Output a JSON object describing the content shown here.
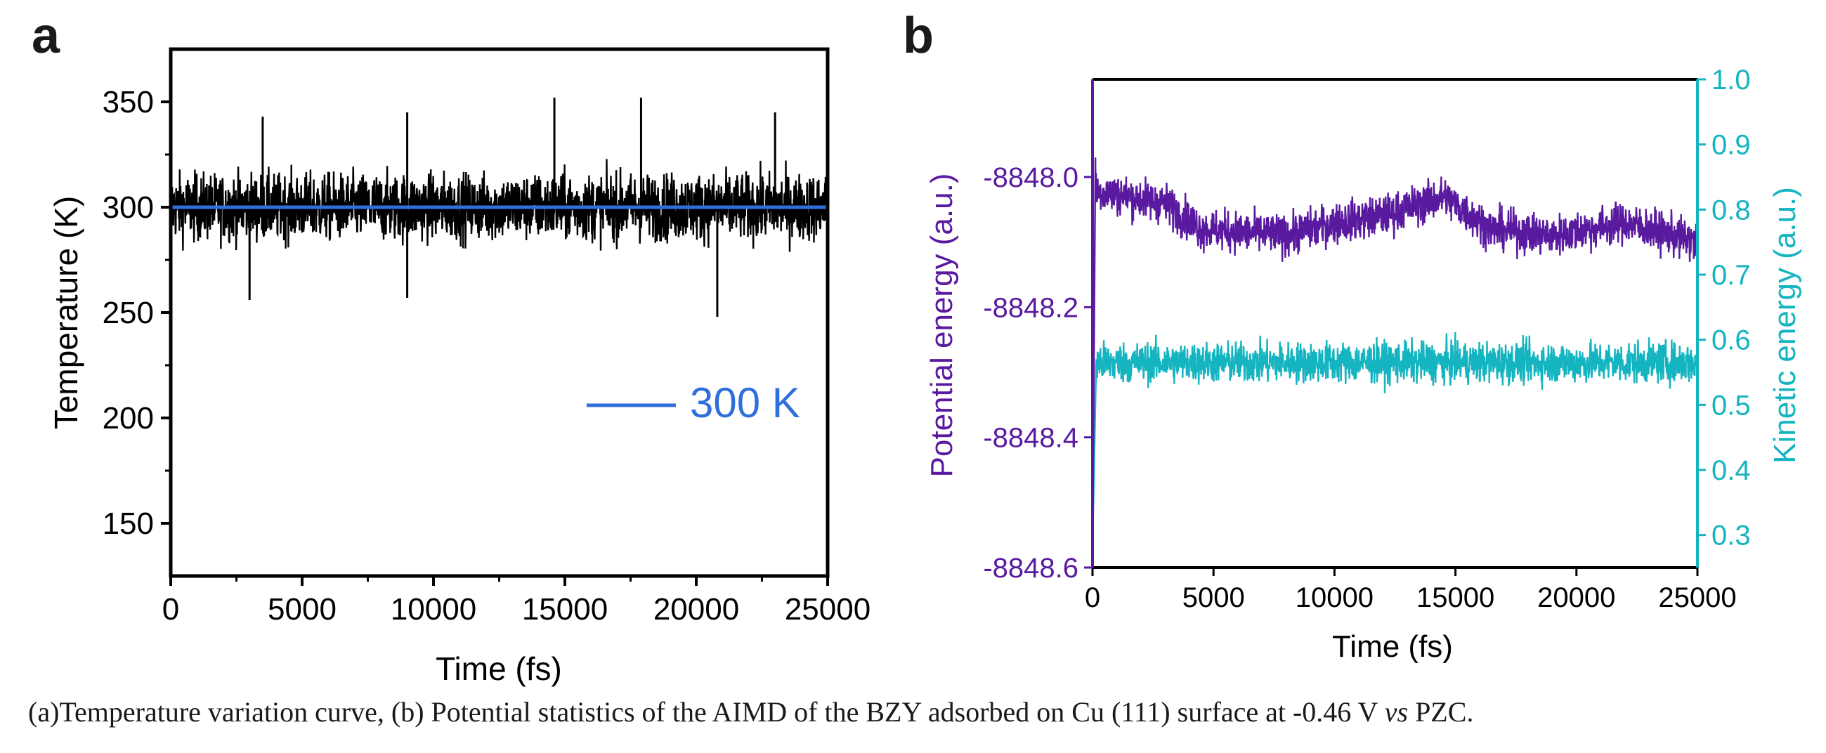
{
  "chart_data": [
    {
      "panel_label": "a",
      "type": "line",
      "xlabel": "Time (fs)",
      "ylabel": "Temperature (K)",
      "xlim": [
        0,
        25000
      ],
      "ylim": [
        125,
        375
      ],
      "xticks": [
        "0",
        "5000",
        "10000",
        "15000",
        "20000",
        "25000"
      ],
      "yticks": [
        "150",
        "200",
        "250",
        "300",
        "350"
      ],
      "grid": false,
      "legend_position": "center-right",
      "series": [
        {
          "color": "#000000",
          "kind": "noisy-trace",
          "center": 300,
          "spread": 15,
          "peaks": [
            [
              3500,
              343
            ],
            [
              9000,
              345
            ],
            [
              14600,
              352
            ],
            [
              17900,
              352
            ],
            [
              20800,
              248
            ],
            [
              3000,
              256
            ],
            [
              9000,
              257
            ],
            [
              23000,
              345
            ]
          ]
        },
        {
          "name": "300 K",
          "color": "#2f6fdc",
          "kind": "constant",
          "value": 300
        }
      ]
    },
    {
      "panel_label": "b",
      "type": "line",
      "xlabel": "Time (fs)",
      "ylabel": "Potential energy (a.u.)",
      "y2label": "Kinetic energy (a.u.)",
      "xlim": [
        0,
        25000
      ],
      "ylim": [
        -8848.6,
        -8847.85
      ],
      "y2lim": [
        0.25,
        1.0
      ],
      "xticks": [
        "0",
        "5000",
        "10000",
        "15000",
        "20000",
        "25000"
      ],
      "yticks": [
        "-8848.0",
        "-8848.2",
        "-8848.4",
        "-8848.6"
      ],
      "y2ticks": [
        "0.3",
        "0.4",
        "0.5",
        "0.6",
        "0.7",
        "0.8",
        "0.9",
        "1.0"
      ],
      "grid": false,
      "ylabel_color": "#5a1aa0",
      "y2label_color": "#14b4c0",
      "series": [
        {
          "axis": "left",
          "color": "#5a1aa0",
          "kind": "noisy-trace",
          "trend": [
            [
              0,
              -8848.02
            ],
            [
              3000,
              -8848.04
            ],
            [
              4500,
              -8848.08
            ],
            [
              8000,
              -8848.09
            ],
            [
              10000,
              -8848.07
            ],
            [
              12000,
              -8848.06
            ],
            [
              14500,
              -8848.03
            ],
            [
              16500,
              -8848.08
            ],
            [
              19000,
              -8848.09
            ],
            [
              22000,
              -8848.07
            ],
            [
              25000,
              -8848.1
            ]
          ],
          "spread": 0.03,
          "start": [
            [
              0,
              -8848.6
            ],
            [
              120,
              -8847.97
            ]
          ]
        },
        {
          "axis": "right",
          "color": "#14b4c0",
          "kind": "noisy-trace",
          "center": 0.565,
          "spread": 0.03,
          "start": [
            [
              0,
              0.28
            ],
            [
              150,
              0.56
            ]
          ]
        }
      ]
    }
  ],
  "caption": {
    "before": "(a)Temperature variation curve, (b) Potential statistics of the AIMD of the BZY adsorbed on Cu (111) surface at -0.46 V ",
    "italic": "vs",
    "after": " PZC."
  }
}
